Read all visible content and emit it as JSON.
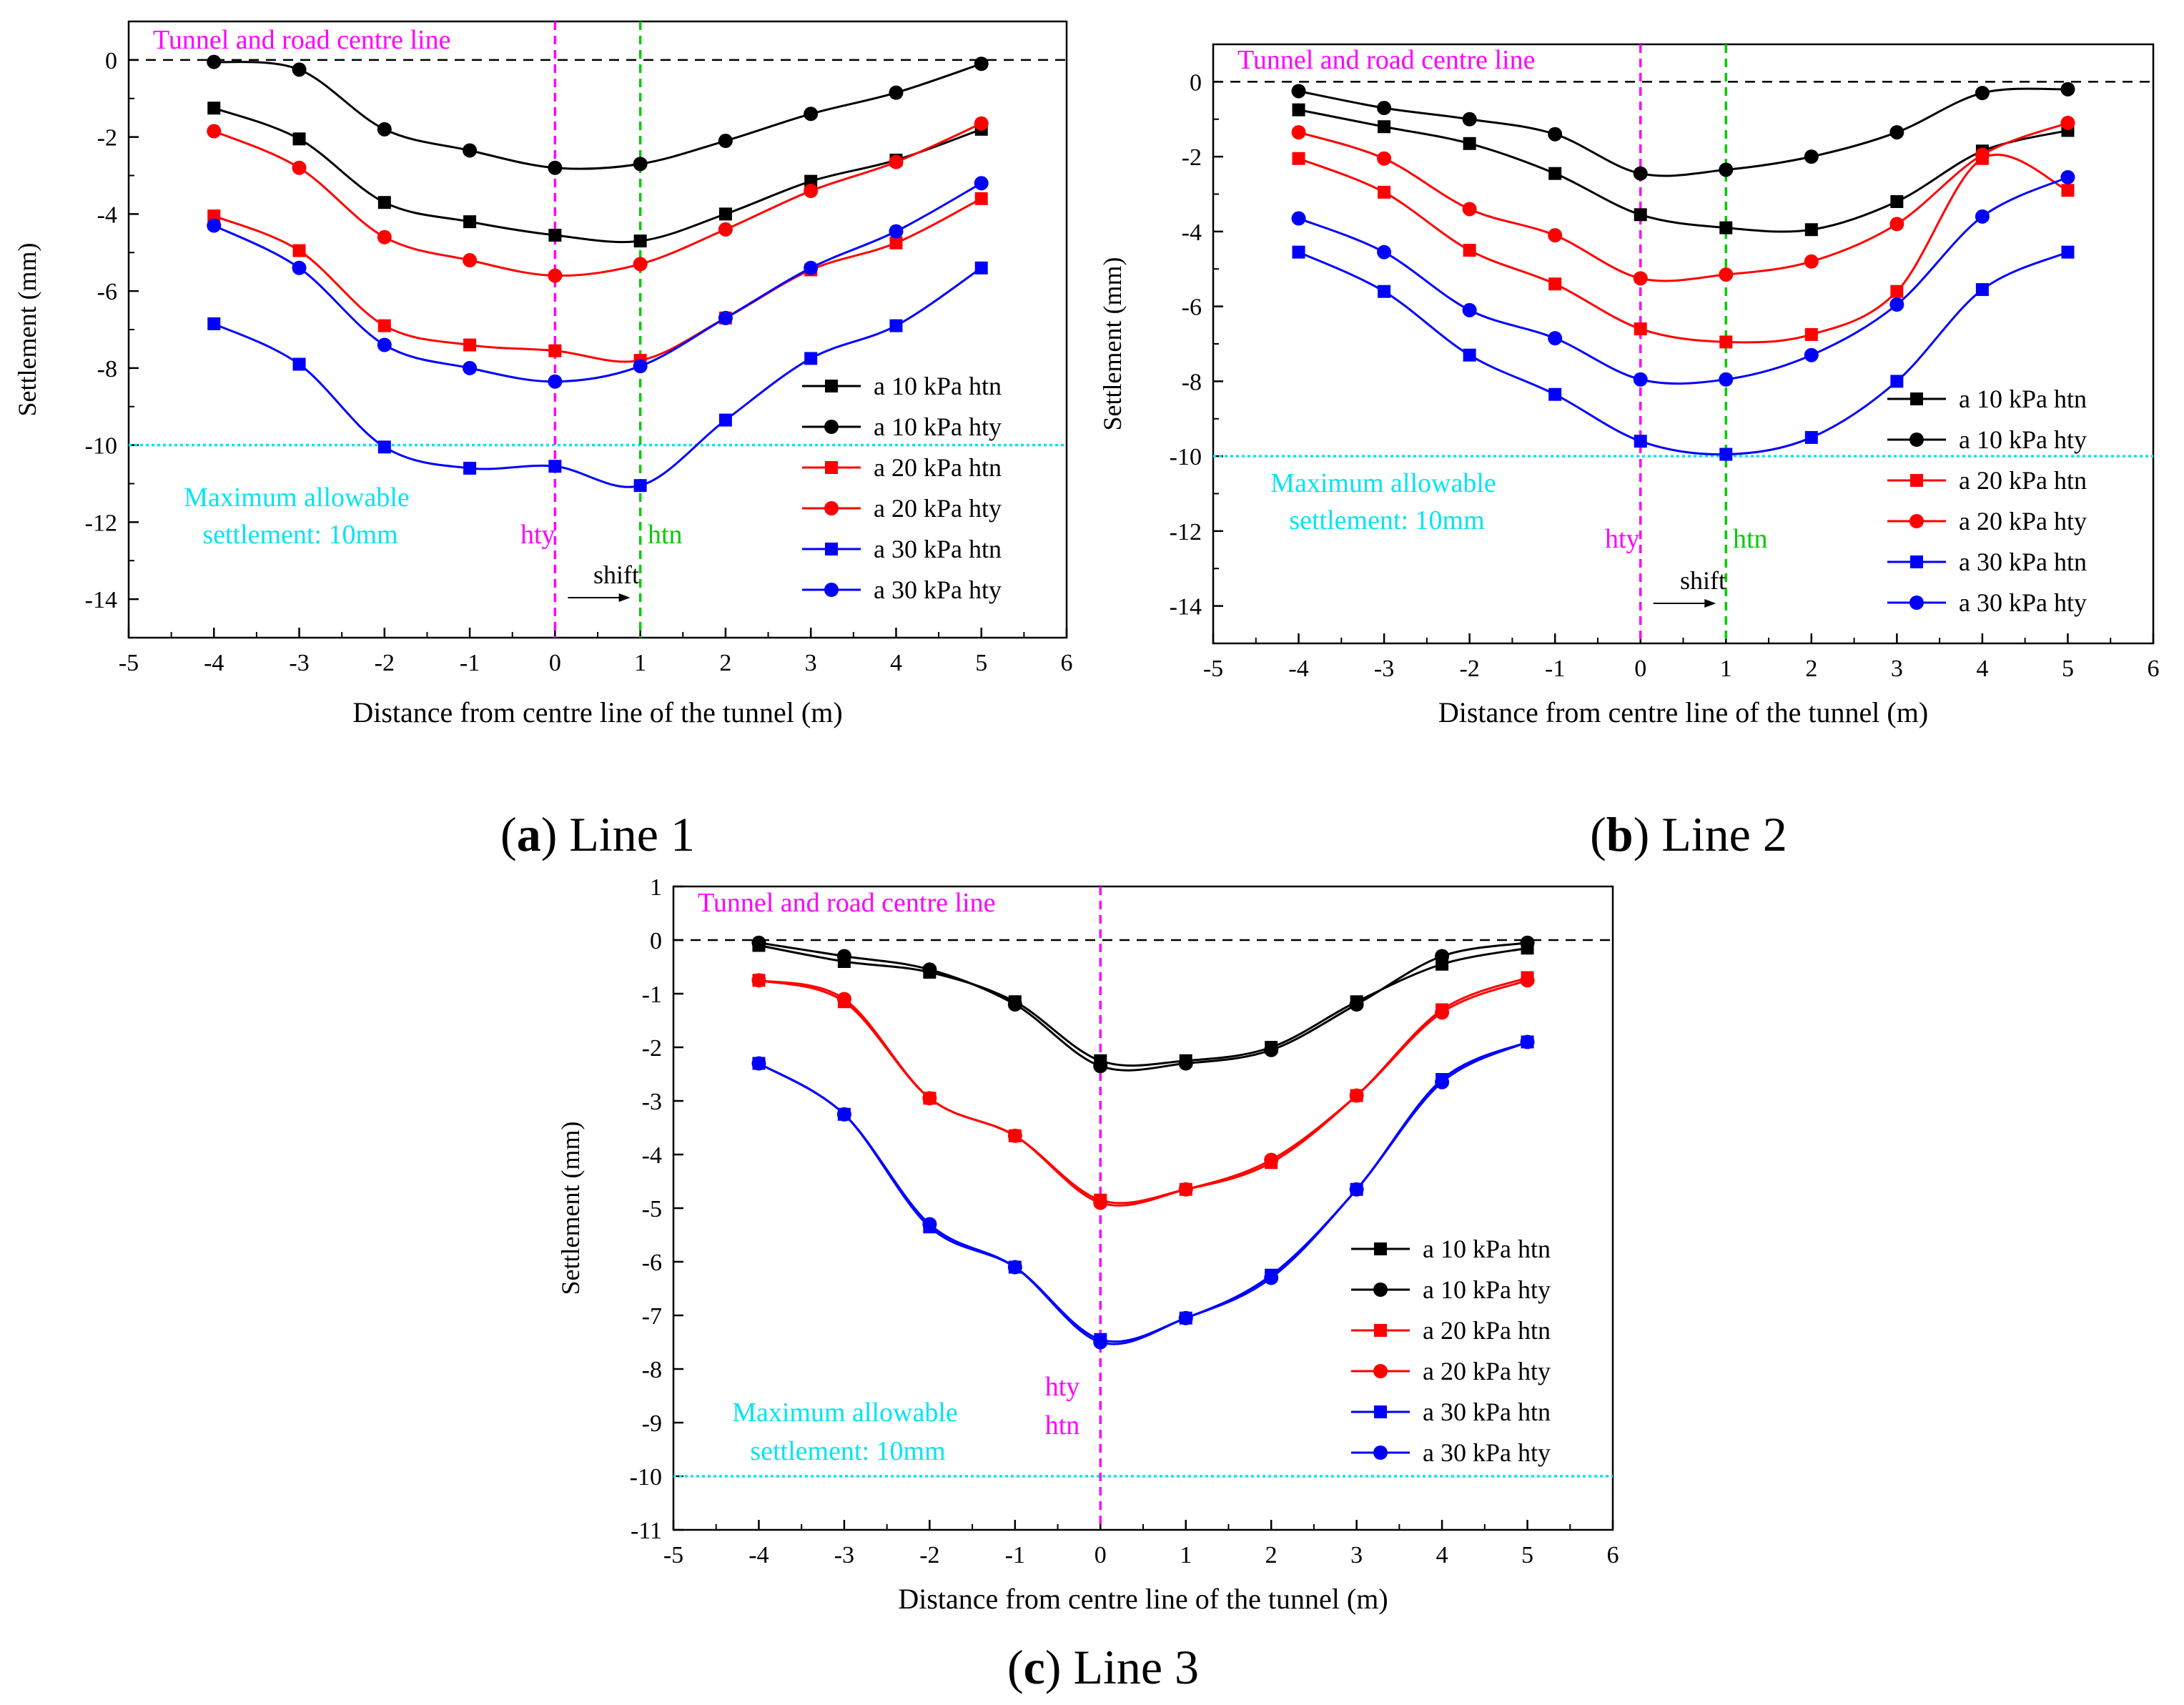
{
  "colors": {
    "black": "#000000",
    "red": "#ff0000",
    "blue": "#0000ff",
    "magenta": "#ff00ff",
    "green": "#00cc00",
    "cyan": "#00e5ee"
  },
  "chart_data": [
    {
      "type": "line",
      "caption_letter": "a",
      "caption_text": "Line 1",
      "xlabel": "Distance from centre line of the tunnel (m)",
      "ylabel": "Settlement (mm)",
      "xlim": [
        -5,
        6
      ],
      "ylim": [
        -15,
        1
      ],
      "xticks": [
        -5,
        -4,
        -3,
        -2,
        -1,
        0,
        1,
        2,
        3,
        4,
        5,
        6
      ],
      "yticks": [
        0,
        -2,
        -4,
        -6,
        -8,
        -10,
        -12,
        -14
      ],
      "annotations": {
        "centre_line": "Tunnel and road centre line",
        "max_allow_1": "Maximum allowable",
        "max_allow_2": "settlement: 10mm",
        "hty": "hty",
        "htn": "htn",
        "shift": "shift"
      },
      "hty_x": 0,
      "htn_x": 1,
      "limit_y": -10,
      "x": [
        -4,
        -3,
        -2,
        -1,
        0,
        1,
        2,
        3,
        4,
        5
      ],
      "series": [
        {
          "name": "a 10 kPa htn",
          "color": "black",
          "marker": "square",
          "values": [
            -1.25,
            -2.05,
            -3.7,
            -4.2,
            -4.55,
            -4.7,
            -4.0,
            -3.15,
            -2.6,
            -1.8
          ]
        },
        {
          "name": "a 10 kPa hty",
          "color": "black",
          "marker": "circle",
          "values": [
            -0.05,
            -0.25,
            -1.8,
            -2.35,
            -2.8,
            -2.7,
            -2.1,
            -1.4,
            -0.85,
            -0.1
          ]
        },
        {
          "name": "a 20 kPa htn",
          "color": "red",
          "marker": "square",
          "values": [
            -4.05,
            -4.95,
            -6.9,
            -7.4,
            -7.55,
            -7.8,
            -6.7,
            -5.45,
            -4.75,
            -3.6
          ]
        },
        {
          "name": "a 20 kPa hty",
          "color": "red",
          "marker": "circle",
          "values": [
            -1.85,
            -2.8,
            -4.6,
            -5.2,
            -5.6,
            -5.3,
            -4.4,
            -3.4,
            -2.65,
            -1.65
          ]
        },
        {
          "name": "a 30 kPa htn",
          "color": "blue",
          "marker": "square",
          "values": [
            -6.85,
            -7.9,
            -10.05,
            -10.6,
            -10.55,
            -11.05,
            -9.35,
            -7.75,
            -6.9,
            -5.4
          ]
        },
        {
          "name": "a 30 kPa hty",
          "color": "blue",
          "marker": "circle",
          "values": [
            -4.3,
            -5.4,
            -7.4,
            -8.0,
            -8.35,
            -7.95,
            -6.7,
            -5.4,
            -4.45,
            -3.2
          ]
        }
      ]
    },
    {
      "type": "line",
      "caption_letter": "b",
      "caption_text": "Line 2",
      "xlabel": "Distance from centre line of the tunnel (m)",
      "ylabel": "Settlement (mm)",
      "xlim": [
        -5,
        6
      ],
      "ylim": [
        -15,
        1
      ],
      "xticks": [
        -5,
        -4,
        -3,
        -2,
        -1,
        0,
        1,
        2,
        3,
        4,
        5,
        6
      ],
      "yticks": [
        0,
        -2,
        -4,
        -6,
        -8,
        -10,
        -12,
        -14
      ],
      "annotations": {
        "centre_line": "Tunnel and road centre line",
        "max_allow_1": "Maximum allowable",
        "max_allow_2": "settlement: 10mm",
        "hty": "hty",
        "htn": "htn",
        "shift": "shift"
      },
      "hty_x": 0,
      "htn_x": 1,
      "limit_y": -10,
      "x": [
        -4,
        -3,
        -2,
        -1,
        0,
        1,
        2,
        3,
        4,
        5
      ],
      "series": [
        {
          "name": "a 10 kPa htn",
          "color": "black",
          "marker": "square",
          "values": [
            -0.75,
            -1.2,
            -1.65,
            -2.45,
            -3.55,
            -3.9,
            -3.95,
            -3.2,
            -1.85,
            -1.3
          ]
        },
        {
          "name": "a 10 kPa hty",
          "color": "black",
          "marker": "circle",
          "values": [
            -0.25,
            -0.7,
            -1.0,
            -1.4,
            -2.45,
            -2.35,
            -2.0,
            -1.35,
            -0.3,
            -0.2
          ]
        },
        {
          "name": "a 20 kPa htn",
          "color": "red",
          "marker": "square",
          "values": [
            -2.05,
            -2.95,
            -4.5,
            -5.4,
            -6.6,
            -6.95,
            -6.75,
            -5.6,
            -2.05,
            -2.9
          ]
        },
        {
          "name": "a 20 kPa hty",
          "color": "red",
          "marker": "circle",
          "values": [
            -1.35,
            -2.05,
            -3.4,
            -4.1,
            -5.25,
            -5.15,
            -4.8,
            -3.8,
            -1.95,
            -1.1
          ]
        },
        {
          "name": "a 30 kPa htn",
          "color": "blue",
          "marker": "square",
          "values": [
            -4.55,
            -5.6,
            -7.3,
            -8.35,
            -9.6,
            -9.95,
            -9.5,
            -8.0,
            -5.55,
            -4.55
          ]
        },
        {
          "name": "a 30 kPa hty",
          "color": "blue",
          "marker": "circle",
          "values": [
            -3.65,
            -4.55,
            -6.1,
            -6.85,
            -7.95,
            -7.95,
            -7.3,
            -5.95,
            -3.6,
            -2.55
          ]
        }
      ]
    },
    {
      "type": "line",
      "caption_letter": "c",
      "caption_text": "Line 3",
      "xlabel": "Distance from centre line of the tunnel (m)",
      "ylabel": "Settlement (mm)",
      "xlim": [
        -5,
        6
      ],
      "ylim": [
        -11,
        1
      ],
      "xticks": [
        -5,
        -4,
        -3,
        -2,
        -1,
        0,
        1,
        2,
        3,
        4,
        5,
        6
      ],
      "yticks": [
        1,
        0,
        -1,
        -2,
        -3,
        -4,
        -5,
        -6,
        -7,
        -8,
        -9,
        -10,
        -11
      ],
      "annotations": {
        "centre_line": "Tunnel and road centre line",
        "max_allow_1": "Maximum allowable",
        "max_allow_2": "settlement: 10mm",
        "hty": "hty",
        "htn": "htn"
      },
      "hty_x": 0,
      "limit_y": -10,
      "x": [
        -4,
        -3,
        -2,
        -1,
        0,
        1,
        2,
        3,
        4,
        5
      ],
      "series": [
        {
          "name": "a 10 kPa htn",
          "color": "black",
          "marker": "square",
          "values": [
            -0.1,
            -0.4,
            -0.6,
            -1.15,
            -2.25,
            -2.25,
            -2.0,
            -1.15,
            -0.45,
            -0.15
          ]
        },
        {
          "name": "a 10 kPa hty",
          "color": "black",
          "marker": "circle",
          "values": [
            -0.05,
            -0.3,
            -0.55,
            -1.2,
            -2.35,
            -2.3,
            -2.05,
            -1.2,
            -0.3,
            -0.05
          ]
        },
        {
          "name": "a 20 kPa htn",
          "color": "red",
          "marker": "square",
          "values": [
            -0.75,
            -1.15,
            -2.95,
            -3.65,
            -4.85,
            -4.65,
            -4.15,
            -2.9,
            -1.3,
            -0.7
          ]
        },
        {
          "name": "a 20 kPa hty",
          "color": "red",
          "marker": "circle",
          "values": [
            -0.75,
            -1.1,
            -2.95,
            -3.65,
            -4.9,
            -4.65,
            -4.1,
            -2.9,
            -1.35,
            -0.75
          ]
        },
        {
          "name": "a 30 kPa htn",
          "color": "blue",
          "marker": "square",
          "values": [
            -2.3,
            -3.25,
            -5.35,
            -6.1,
            -7.45,
            -7.05,
            -6.25,
            -4.65,
            -2.6,
            -1.9
          ]
        },
        {
          "name": "a 30 kPa hty",
          "color": "blue",
          "marker": "circle",
          "values": [
            -2.3,
            -3.25,
            -5.3,
            -6.1,
            -7.5,
            -7.05,
            -6.3,
            -4.65,
            -2.65,
            -1.9
          ]
        }
      ]
    }
  ]
}
